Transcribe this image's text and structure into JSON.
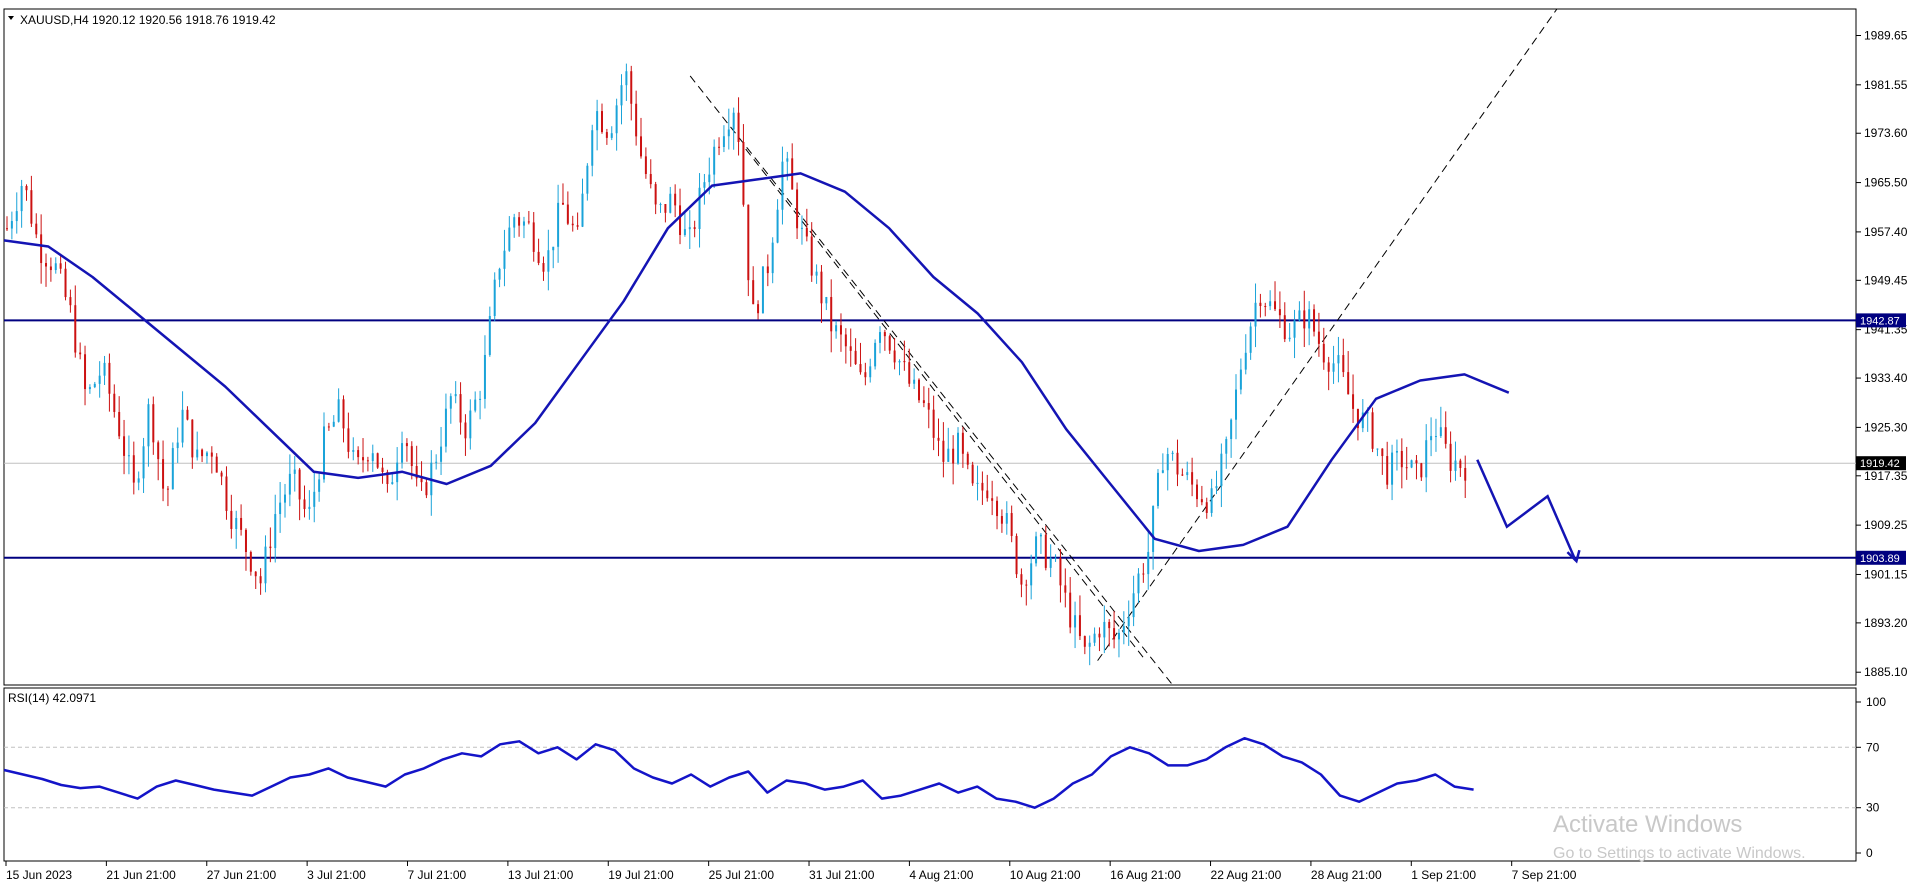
{
  "header": {
    "symbol": "XAUUSD,H4",
    "ohlc": "1920.12 1920.56 1918.76 1919.42"
  },
  "rsi_header": "RSI(14) 42.0971",
  "colors": {
    "bull": "#1aa3d9",
    "bear": "#cc1111",
    "ma": "#1414b4",
    "level": "#000080",
    "rsi": "#1414c8",
    "grid": "#c0c0c0",
    "price_tag": "#000000",
    "level_tag": "#000080"
  },
  "watermark": {
    "title": "Activate Windows",
    "subtitle": "Go to Settings to activate Windows."
  },
  "chart_data": [
    {
      "type": "candlestick",
      "title": "XAUUSD,H4",
      "ylim": [
        1883,
        1994
      ],
      "y_ticks": [
        "1989.65",
        "1981.55",
        "1973.60",
        "1965.50",
        "1957.40",
        "1949.45",
        "1941.35",
        "1933.40",
        "1925.30",
        "1917.35",
        "1909.25",
        "1901.15",
        "1893.20",
        "1885.10"
      ],
      "x_ticks": [
        "15 Jun 2023",
        "21 Jun 21:00",
        "27 Jun 21:00",
        "3 Jul 21:00",
        "7 Jul 21:00",
        "13 Jul 21:00",
        "19 Jul 21:00",
        "25 Jul 21:00",
        "31 Jul 21:00",
        "4 Aug 21:00",
        "10 Aug 21:00",
        "16 Aug 21:00",
        "22 Aug 21:00",
        "28 Aug 21:00",
        "1 Sep 21:00",
        "7 Sep 21:00"
      ],
      "price_path": [
        1958,
        1966,
        1955,
        1952,
        1944,
        1930,
        1935,
        1926,
        1915,
        1929,
        1913,
        1928,
        1920,
        1922,
        1912,
        1906,
        1900,
        1912,
        1917,
        1910,
        1923,
        1928,
        1918,
        1923,
        1914,
        1926,
        1913,
        1920,
        1930,
        1925,
        1933,
        1952,
        1960,
        1958,
        1952,
        1962,
        1956,
        1978,
        1974,
        1984,
        1970,
        1960,
        1963,
        1955,
        1966,
        1974,
        1979,
        1943,
        1952,
        1970,
        1958,
        1950,
        1942,
        1938,
        1932,
        1943,
        1938,
        1932,
        1928,
        1920,
        1922,
        1914,
        1916,
        1910,
        1900,
        1906,
        1903,
        1895,
        1888,
        1893,
        1890,
        1898,
        1905,
        1922,
        1918,
        1915,
        1913,
        1922,
        1938,
        1948,
        1944,
        1941,
        1944,
        1938,
        1935,
        1928,
        1925,
        1918,
        1920,
        1917,
        1926,
        1920,
        1919
      ],
      "ma_path": [
        1956,
        1955,
        1950,
        1944,
        1938,
        1932,
        1925,
        1918,
        1917,
        1918,
        1916,
        1919,
        1926,
        1936,
        1946,
        1958,
        1965,
        1966,
        1967,
        1964,
        1958,
        1950,
        1944,
        1936,
        1925,
        1916,
        1907,
        1905,
        1906,
        1909,
        1920,
        1930,
        1933,
        1934,
        1931
      ],
      "levels": [
        {
          "label": "1942.87",
          "value": 1942.87
        },
        {
          "label": "1903.89",
          "value": 1903.89
        }
      ],
      "current_price": {
        "label": "1919.42",
        "value": 1919.42
      },
      "trendlines": [
        {
          "from": [
            0.3705,
            1983
          ],
          "to": [
            0.631,
            1883
          ]
        },
        {
          "from": [
            0.4005,
            1971
          ],
          "to": [
            0.6165,
            1887
          ]
        },
        {
          "from": [
            0.5905,
            1887
          ],
          "to": [
            0.8385,
            1994
          ]
        }
      ],
      "projection": [
        [
          0.7955,
          1920
        ],
        [
          0.8115,
          1909
        ],
        [
          0.8335,
          1914
        ],
        [
          0.8485,
          1903.5
        ]
      ]
    },
    {
      "type": "line",
      "title": "RSI(14) 42.0971",
      "ylim": [
        0,
        100
      ],
      "y_ticks": [
        "100",
        "70",
        "30",
        "0"
      ],
      "levels": [
        70,
        30
      ],
      "series": [
        {
          "values": [
            55,
            52,
            49,
            45,
            43,
            44,
            40,
            36,
            44,
            48,
            45,
            42,
            40,
            38,
            44,
            50,
            52,
            56,
            50,
            47,
            44,
            52,
            56,
            62,
            66,
            64,
            72,
            74,
            66,
            70,
            62,
            72,
            68,
            56,
            50,
            46,
            52,
            44,
            50,
            54,
            40,
            48,
            46,
            42,
            44,
            48,
            36,
            38,
            42,
            46,
            40,
            44,
            36,
            34,
            30,
            36,
            46,
            52,
            64,
            70,
            66,
            58,
            58,
            62,
            70,
            76,
            72,
            64,
            60,
            52,
            38,
            34,
            40,
            46,
            48,
            52,
            44,
            42
          ]
        }
      ]
    }
  ]
}
